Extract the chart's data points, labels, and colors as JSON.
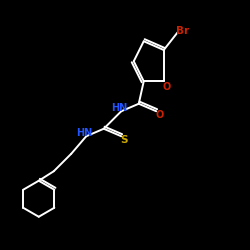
{
  "bg_color": "#000000",
  "bond_color": "#ffffff",
  "atom_colors": {
    "Br": "#cc2200",
    "O": "#cc2200",
    "N": "#2255ff",
    "S": "#ccaa00",
    "C": "#ffffff"
  }
}
